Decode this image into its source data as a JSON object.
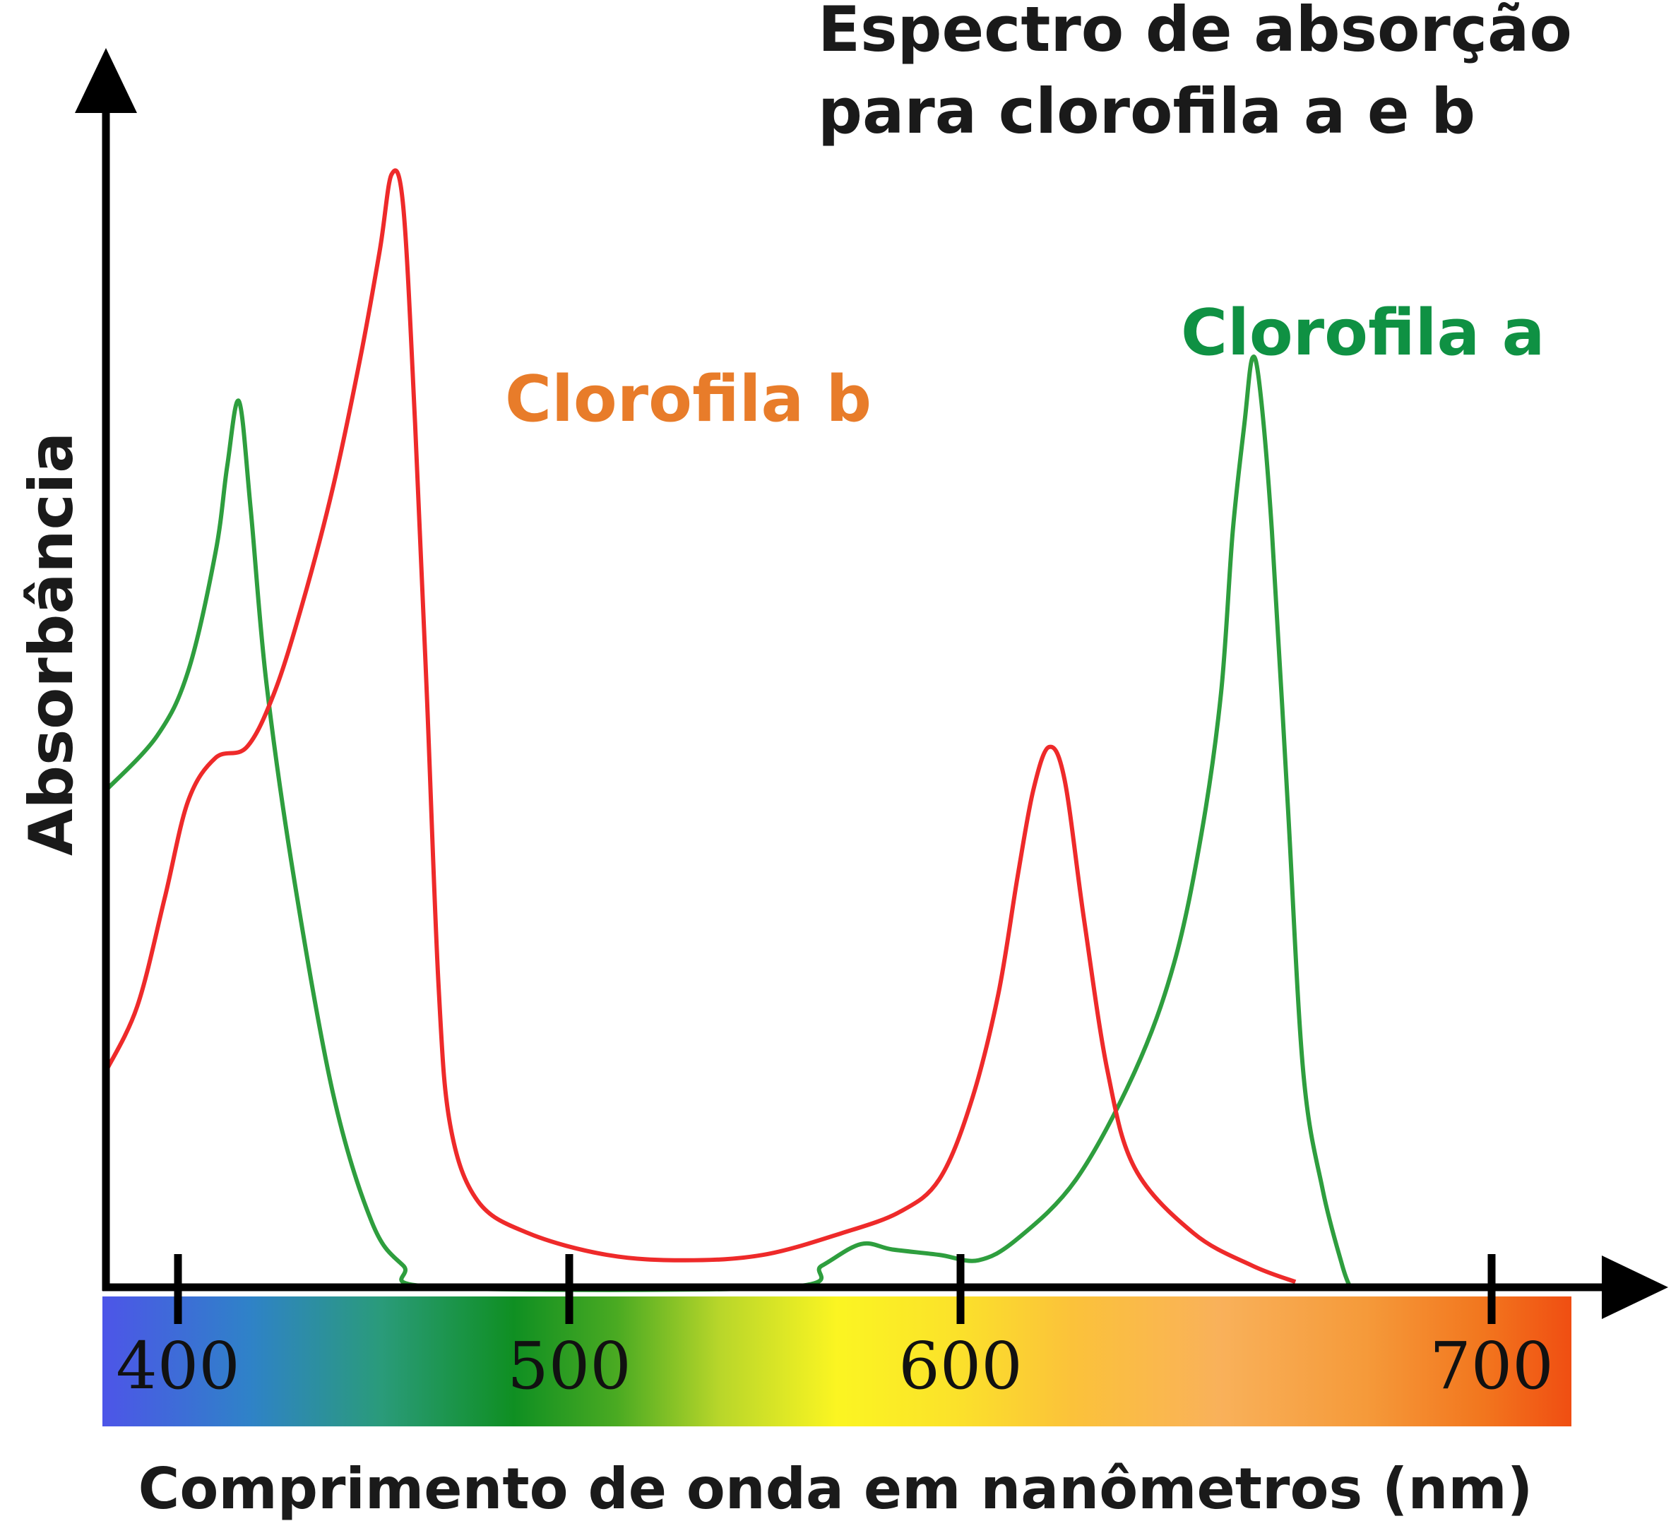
{
  "chart_data": {
    "type": "line",
    "title_lines": [
      "Espectro de absorção",
      "para clorofila a e b"
    ],
    "xlabel": "Comprimento de onda em nanômetros (nm)",
    "ylabel": "Absorbância",
    "xlim": [
      382,
      730
    ],
    "ylim": [
      0,
      1.05
    ],
    "xticks": [
      "400",
      "500",
      "600",
      "700"
    ],
    "grid": false,
    "background": "visible-spectrum gradient strip under the x axis",
    "series": [
      {
        "name": "Clorofila a",
        "color": "#2e9e3e",
        "label_color": "#0f9143",
        "points": [
          [
            382,
            0.46
          ],
          [
            395,
            0.51
          ],
          [
            403,
            0.57
          ],
          [
            410,
            0.68
          ],
          [
            413,
            0.76
          ],
          [
            416,
            0.82
          ],
          [
            419,
            0.72
          ],
          [
            423,
            0.56
          ],
          [
            430,
            0.38
          ],
          [
            440,
            0.18
          ],
          [
            450,
            0.06
          ],
          [
            458,
            0.02
          ],
          [
            467,
            0.0
          ],
          [
            555,
            0.0
          ],
          [
            565,
            0.02
          ],
          [
            575,
            0.04
          ],
          [
            583,
            0.035
          ],
          [
            595,
            0.03
          ],
          [
            605,
            0.025
          ],
          [
            615,
            0.045
          ],
          [
            630,
            0.1
          ],
          [
            645,
            0.2
          ],
          [
            655,
            0.3
          ],
          [
            662,
            0.42
          ],
          [
            667,
            0.55
          ],
          [
            670,
            0.7
          ],
          [
            673,
            0.8
          ],
          [
            675,
            0.86
          ],
          [
            677,
            0.83
          ],
          [
            680,
            0.7
          ],
          [
            684,
            0.45
          ],
          [
            688,
            0.2
          ],
          [
            693,
            0.09
          ],
          [
            698,
            0.02
          ],
          [
            700,
            0.0
          ]
        ]
      },
      {
        "name": "Clorofila b",
        "color": "#ee2a2a",
        "label_color": "#e87c2a",
        "points": [
          [
            382,
            0.2
          ],
          [
            390,
            0.26
          ],
          [
            397,
            0.36
          ],
          [
            403,
            0.45
          ],
          [
            410,
            0.49
          ],
          [
            418,
            0.5
          ],
          [
            425,
            0.55
          ],
          [
            432,
            0.63
          ],
          [
            440,
            0.74
          ],
          [
            447,
            0.86
          ],
          [
            452,
            0.96
          ],
          [
            455,
            1.03
          ],
          [
            458,
            1.0
          ],
          [
            461,
            0.8
          ],
          [
            464,
            0.55
          ],
          [
            467,
            0.28
          ],
          [
            470,
            0.15
          ],
          [
            477,
            0.08
          ],
          [
            490,
            0.05
          ],
          [
            510,
            0.03
          ],
          [
            530,
            0.025
          ],
          [
            550,
            0.03
          ],
          [
            570,
            0.05
          ],
          [
            585,
            0.07
          ],
          [
            595,
            0.1
          ],
          [
            603,
            0.17
          ],
          [
            610,
            0.27
          ],
          [
            615,
            0.38
          ],
          [
            619,
            0.46
          ],
          [
            623,
            0.5
          ],
          [
            627,
            0.47
          ],
          [
            632,
            0.34
          ],
          [
            638,
            0.2
          ],
          [
            645,
            0.11
          ],
          [
            660,
            0.05
          ],
          [
            675,
            0.02
          ],
          [
            686,
            0.005
          ]
        ]
      }
    ]
  }
}
